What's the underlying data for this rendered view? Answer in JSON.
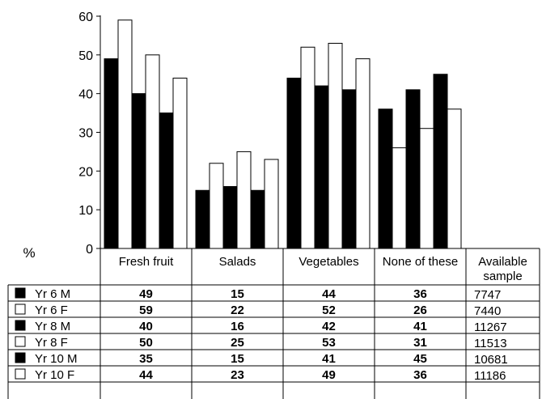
{
  "chart_data": {
    "type": "bar",
    "ylabel": "%",
    "ylim": [
      0,
      60
    ],
    "yticks": [
      0,
      10,
      20,
      30,
      40,
      50,
      60
    ],
    "grid": false,
    "categories": [
      "Fresh fruit",
      "Salads",
      "Vegetables",
      "None of these"
    ],
    "extra_column_header": [
      "Available",
      "sample"
    ],
    "series": [
      {
        "name": "Yr 6 M",
        "fill": "#000000",
        "values": [
          49,
          15,
          44,
          36
        ],
        "sample": "7747"
      },
      {
        "name": "Yr 6 F",
        "fill": "#ffffff",
        "values": [
          59,
          22,
          52,
          26
        ],
        "sample": "7440"
      },
      {
        "name": "Yr 8 M",
        "fill": "#000000",
        "values": [
          40,
          16,
          42,
          41
        ],
        "sample": "11267"
      },
      {
        "name": "Yr 8 F",
        "fill": "#ffffff",
        "values": [
          50,
          25,
          53,
          31
        ],
        "sample": "11513"
      },
      {
        "name": "Yr 10 M",
        "fill": "#000000",
        "values": [
          35,
          15,
          41,
          45
        ],
        "sample": "10681"
      },
      {
        "name": "Yr 10 F",
        "fill": "#ffffff",
        "values": [
          44,
          23,
          49,
          36
        ],
        "sample": "11186"
      }
    ]
  }
}
